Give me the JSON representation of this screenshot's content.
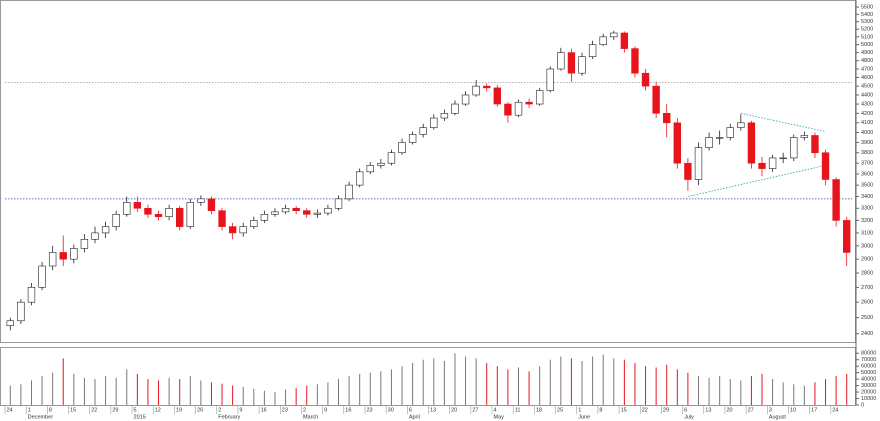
{
  "chart_data": {
    "type": "candlestick",
    "log_scale": true,
    "up_color": "#ffffff",
    "down_color": "#e8141c",
    "outline_color": "#222222",
    "categories": [
      "24",
      null,
      "1",
      null,
      "8",
      null,
      "15",
      null,
      "22",
      null,
      "29",
      null,
      "5",
      null,
      "12",
      null,
      "19",
      null,
      "26",
      null,
      "2",
      null,
      "9",
      null,
      "16",
      null,
      "23",
      null,
      "2",
      null,
      "9",
      null,
      "16",
      null,
      "23",
      null,
      "30",
      null,
      "6",
      null,
      "13",
      null,
      "20",
      null,
      "27",
      null,
      "4",
      null,
      "11",
      null,
      "18",
      null,
      "25",
      null,
      "1",
      null,
      "8",
      null,
      "15",
      null,
      "22",
      null,
      "29",
      null,
      "6",
      null,
      "13",
      null,
      "20",
      null,
      "27",
      null,
      "3",
      null,
      "10",
      null,
      "17",
      null,
      "24",
      null
    ],
    "months": [
      null,
      null,
      "December",
      null,
      null,
      null,
      null,
      null,
      null,
      null,
      null,
      null,
      "2015",
      null,
      null,
      null,
      null,
      null,
      null,
      null,
      "February",
      null,
      null,
      null,
      null,
      null,
      null,
      null,
      "March",
      null,
      null,
      null,
      null,
      null,
      null,
      null,
      null,
      null,
      "April",
      null,
      null,
      null,
      null,
      null,
      null,
      null,
      "May",
      null,
      null,
      null,
      null,
      null,
      null,
      null,
      "June",
      null,
      null,
      null,
      null,
      null,
      null,
      null,
      null,
      null,
      "July",
      null,
      null,
      null,
      null,
      null,
      null,
      null,
      "August",
      null,
      null,
      null,
      null,
      null,
      null,
      null
    ],
    "open": [
      2450,
      2480,
      2600,
      2700,
      2850,
      2950,
      2900,
      2980,
      3050,
      3100,
      3150,
      3250,
      3350,
      3300,
      3250,
      3230,
      3300,
      3150,
      3350,
      3380,
      3280,
      3150,
      3100,
      3150,
      3200,
      3250,
      3270,
      3300,
      3280,
      3250,
      3260,
      3300,
      3380,
      3500,
      3620,
      3680,
      3700,
      3800,
      3900,
      3980,
      4050,
      4150,
      4200,
      4300,
      4400,
      4500,
      4480,
      4300,
      4180,
      4320,
      4300,
      4450,
      4700,
      4900,
      4650,
      4850,
      5000,
      5100,
      5150,
      4950,
      4650,
      4500,
      4200,
      4100,
      3700,
      3550,
      3850,
      3950,
      3950,
      4050,
      4100,
      3700,
      3650,
      3750,
      3750,
      3950,
      3970,
      3800,
      3550,
      3200
    ],
    "high": [
      2500,
      2620,
      2730,
      2880,
      3000,
      3080,
      3010,
      3090,
      3150,
      3190,
      3280,
      3400,
      3400,
      3330,
      3280,
      3330,
      3320,
      3380,
      3410,
      3400,
      3300,
      3180,
      3180,
      3230,
      3280,
      3300,
      3330,
      3320,
      3300,
      3290,
      3330,
      3410,
      3530,
      3650,
      3710,
      3740,
      3830,
      3940,
      4010,
      4090,
      4190,
      4240,
      4340,
      4440,
      4570,
      4530,
      4510,
      4320,
      4350,
      4360,
      4480,
      4730,
      4960,
      4950,
      4900,
      5050,
      5140,
      5180,
      5170,
      4980,
      4700,
      4550,
      4300,
      4150,
      3750,
      3900,
      4000,
      4020,
      4090,
      4190,
      4120,
      3760,
      3780,
      3800,
      3980,
      4010,
      4000,
      3830,
      3570,
      3230
    ],
    "low": [
      2420,
      2460,
      2580,
      2680,
      2820,
      2850,
      2870,
      2950,
      3020,
      3060,
      3120,
      3230,
      3270,
      3220,
      3200,
      3200,
      3120,
      3130,
      3320,
      3250,
      3120,
      3050,
      3070,
      3130,
      3180,
      3230,
      3250,
      3250,
      3220,
      3220,
      3240,
      3280,
      3360,
      3480,
      3600,
      3650,
      3680,
      3780,
      3880,
      3950,
      4030,
      4120,
      4180,
      4280,
      4380,
      4440,
      4270,
      4100,
      4160,
      4260,
      4280,
      4430,
      4680,
      4550,
      4620,
      4820,
      4980,
      5060,
      4900,
      4600,
      4450,
      4150,
      3950,
      3650,
      3450,
      3500,
      3820,
      3880,
      3920,
      4020,
      3650,
      3580,
      3620,
      3700,
      3720,
      3920,
      3750,
      3500,
      3150,
      2850
    ],
    "close": [
      2480,
      2600,
      2700,
      2850,
      2950,
      2900,
      2980,
      3050,
      3100,
      3150,
      3250,
      3350,
      3300,
      3250,
      3230,
      3300,
      3150,
      3350,
      3380,
      3280,
      3150,
      3100,
      3150,
      3200,
      3250,
      3270,
      3300,
      3280,
      3250,
      3260,
      3300,
      3380,
      3500,
      3620,
      3680,
      3700,
      3800,
      3900,
      3980,
      4050,
      4150,
      4200,
      4300,
      4400,
      4500,
      4480,
      4300,
      4180,
      4320,
      4300,
      4450,
      4700,
      4900,
      4650,
      4850,
      5000,
      5100,
      5150,
      4950,
      4650,
      4500,
      4200,
      4100,
      3700,
      3550,
      3850,
      3950,
      3950,
      4050,
      4100,
      3700,
      3650,
      3750,
      3750,
      3950,
      3970,
      3800,
      3550,
      3200,
      2950
    ],
    "volume": [
      30000,
      32000,
      38000,
      45000,
      50000,
      72000,
      48000,
      42000,
      40000,
      45000,
      42000,
      55000,
      48000,
      40000,
      38000,
      42000,
      40000,
      45000,
      38000,
      35000,
      33000,
      30000,
      28000,
      25000,
      22000,
      20000,
      24000,
      26000,
      30000,
      32000,
      35000,
      40000,
      45000,
      48000,
      50000,
      52000,
      55000,
      60000,
      65000,
      70000,
      72000,
      68000,
      80000,
      75000,
      72000,
      65000,
      60000,
      55000,
      58000,
      52000,
      60000,
      70000,
      75000,
      72000,
      68000,
      75000,
      78000,
      72000,
      70000,
      65000,
      60000,
      58000,
      62000,
      55000,
      50000,
      45000,
      42000,
      45000,
      40000,
      38000,
      45000,
      48000,
      40000,
      35000,
      32000,
      30000,
      35000,
      40000,
      45000,
      48000
    ],
    "ylim": [
      2350,
      5600
    ],
    "yticks": [
      2400,
      2500,
      2600,
      2700,
      2800,
      2900,
      3000,
      3100,
      3200,
      3300,
      3400,
      3500,
      3600,
      3700,
      3800,
      3900,
      4000,
      4100,
      4200,
      4300,
      4400,
      4500,
      4600,
      4700,
      4800,
      4900,
      5000,
      5100,
      5200,
      5300,
      5400,
      5500
    ],
    "volume_ylim": [
      0,
      85000
    ],
    "volume_yticks": [
      0,
      10000,
      20000,
      30000,
      40000,
      50000,
      60000,
      70000,
      80000
    ],
    "reference_lines": [
      {
        "value": 3380,
        "color": "#3a3aa8"
      },
      {
        "value": 4540,
        "color": "#9a9a9a"
      }
    ],
    "trendlines": [
      {
        "x": [
          64,
          77
        ],
        "y": [
          3400,
          3680
        ]
      },
      {
        "x": [
          69,
          77
        ],
        "y": [
          4200,
          4010
        ]
      }
    ],
    "trendline_color": "#2aa198"
  }
}
